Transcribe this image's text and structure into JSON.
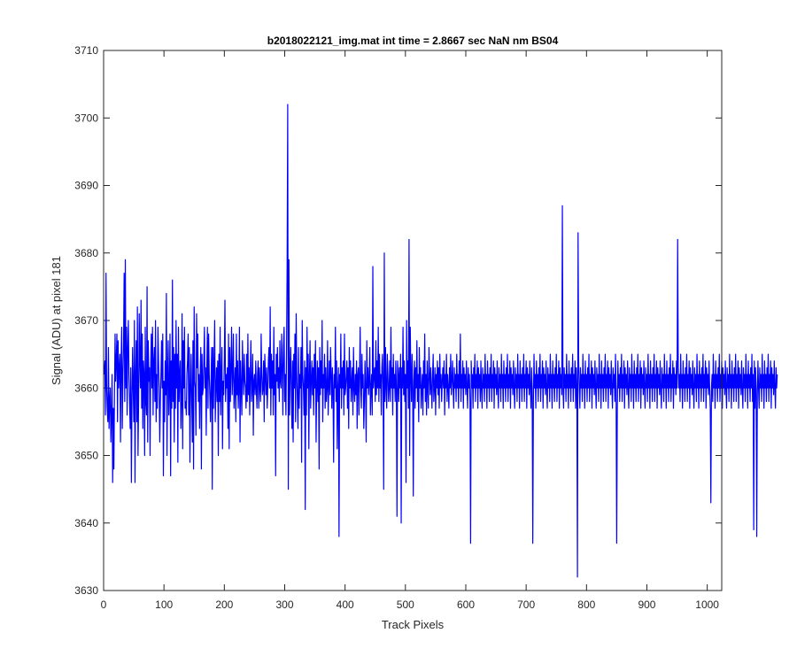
{
  "chart_data": {
    "type": "line",
    "title": "b2018022121_img.mat int time = 2.8667 sec  NaN nm BS04",
    "xlabel": "Track Pixels",
    "ylabel": "Signal (ADU) at pixel 181",
    "xlim": [
      0,
      1024
    ],
    "ylim": [
      3630,
      3710
    ],
    "xticks": [
      0,
      100,
      200,
      300,
      400,
      500,
      600,
      700,
      800,
      900,
      1000
    ],
    "yticks": [
      3630,
      3640,
      3650,
      3660,
      3670,
      3680,
      3690,
      3700,
      3710
    ],
    "grid": false,
    "series": [
      {
        "color": "#0000ff",
        "x_start": 1,
        "x_step": 1,
        "values": [
          3662,
          3664,
          3656,
          3677,
          3660,
          3657,
          3655,
          3666,
          3654,
          3658,
          3660,
          3652,
          3656,
          3662,
          3646,
          3657,
          3648,
          3659,
          3668,
          3661,
          3664,
          3668,
          3655,
          3667,
          3660,
          3663,
          3665,
          3652,
          3664,
          3669,
          3654,
          3662,
          3666,
          3677,
          3658,
          3679,
          3660,
          3669,
          3656,
          3666,
          3670,
          3662,
          3658,
          3654,
          3663,
          3646,
          3658,
          3666,
          3660,
          3655,
          3670,
          3646,
          3662,
          3667,
          3655,
          3672,
          3650,
          3658,
          3671,
          3664,
          3660,
          3673,
          3657,
          3668,
          3654,
          3664,
          3662,
          3650,
          3669,
          3658,
          3656,
          3675,
          3652,
          3667,
          3661,
          3663,
          3650,
          3663,
          3668,
          3660,
          3669,
          3656,
          3664,
          3666,
          3658,
          3670,
          3655,
          3662,
          3657,
          3669,
          3664,
          3660,
          3652,
          3658,
          3662,
          3667,
          3660,
          3668,
          3647,
          3661,
          3655,
          3664,
          3659,
          3674,
          3650,
          3662,
          3667,
          3656,
          3660,
          3668,
          3647,
          3664,
          3657,
          3676,
          3658,
          3666,
          3652,
          3665,
          3657,
          3670,
          3660,
          3665,
          3649,
          3669,
          3658,
          3662,
          3664,
          3654,
          3658,
          3671,
          3651,
          3667,
          3660,
          3669,
          3657,
          3658,
          3656,
          3662,
          3664,
          3668,
          3656,
          3666,
          3649,
          3660,
          3665,
          3658,
          3652,
          3667,
          3648,
          3672,
          3661,
          3660,
          3653,
          3671,
          3663,
          3668,
          3658,
          3662,
          3654,
          3662,
          3666,
          3648,
          3665,
          3659,
          3660,
          3664,
          3669,
          3660,
          3663,
          3653,
          3663,
          3669,
          3657,
          3668,
          3662,
          3659,
          3655,
          3661,
          3666,
          3645,
          3666,
          3657,
          3664,
          3670,
          3655,
          3660,
          3663,
          3658,
          3664,
          3650,
          3665,
          3658,
          3669,
          3656,
          3662,
          3666,
          3651,
          3661,
          3659,
          3664,
          3673,
          3658,
          3662,
          3660,
          3663,
          3654,
          3668,
          3651,
          3666,
          3658,
          3663,
          3669,
          3659,
          3662,
          3668,
          3657,
          3660,
          3663,
          3655,
          3668,
          3659,
          3664,
          3657,
          3660,
          3669,
          3652,
          3664,
          3660,
          3656,
          3667,
          3662,
          3659,
          3665,
          3661,
          3660,
          3657,
          3665,
          3658,
          3668,
          3659,
          3663,
          3656,
          3662,
          3667,
          3658,
          3660,
          3665,
          3653,
          3661,
          3662,
          3659,
          3664,
          3660,
          3657,
          3662,
          3664,
          3657,
          3663,
          3660,
          3658,
          3668,
          3662,
          3659,
          3660,
          3664,
          3655,
          3665,
          3662,
          3659,
          3663,
          3657,
          3660,
          3664,
          3666,
          3660,
          3672,
          3656,
          3665,
          3660,
          3664,
          3656,
          3669,
          3659,
          3662,
          3647,
          3665,
          3661,
          3666,
          3660,
          3663,
          3658,
          3667,
          3661,
          3660,
          3668,
          3663,
          3656,
          3666,
          3669,
          3658,
          3662,
          3656,
          3665,
          3678,
          3702,
          3645,
          3679,
          3656,
          3662,
          3666,
          3660,
          3654,
          3664,
          3652,
          3665,
          3660,
          3668,
          3655,
          3671,
          3662,
          3658,
          3654,
          3666,
          3657,
          3662,
          3660,
          3666,
          3649,
          3670,
          3662,
          3660,
          3656,
          3664,
          3642,
          3663,
          3656,
          3669,
          3660,
          3665,
          3651,
          3662,
          3667,
          3657,
          3661,
          3664,
          3659,
          3663,
          3656,
          3665,
          3660,
          3667,
          3652,
          3660,
          3664,
          3658,
          3663,
          3648,
          3666,
          3659,
          3664,
          3660,
          3670,
          3655,
          3662,
          3660,
          3665,
          3657,
          3663,
          3658,
          3660,
          3667,
          3656,
          3660,
          3664,
          3659,
          3666,
          3662,
          3657,
          3663,
          3660,
          3649,
          3662,
          3660,
          3669,
          3658,
          3664,
          3651,
          3660,
          3663,
          3638,
          3662,
          3660,
          3668,
          3657,
          3663,
          3660,
          3664,
          3656,
          3668,
          3659,
          3660,
          3662,
          3664,
          3657,
          3663,
          3654,
          3666,
          3660,
          3664,
          3658,
          3661,
          3663,
          3656,
          3666,
          3660,
          3658,
          3662,
          3659,
          3664,
          3654,
          3662,
          3663,
          3656,
          3662,
          3669,
          3660,
          3657,
          3665,
          3660,
          3662,
          3654,
          3658,
          3664,
          3660,
          3652,
          3667,
          3660,
          3663,
          3659,
          3661,
          3666,
          3656,
          3660,
          3662,
          3656,
          3678,
          3660,
          3662,
          3663,
          3658,
          3667,
          3659,
          3664,
          3660,
          3669,
          3658,
          3665,
          3660,
          3662,
          3656,
          3663,
          3665,
          3660,
          3645,
          3680,
          3658,
          3666,
          3660,
          3657,
          3665,
          3662,
          3658,
          3660,
          3664,
          3658,
          3669,
          3660,
          3663,
          3656,
          3665,
          3660,
          3662,
          3658,
          3664,
          3660,
          3641,
          3664,
          3662,
          3658,
          3663,
          3660,
          3665,
          3640,
          3663,
          3660,
          3669,
          3659,
          3664,
          3658,
          3662,
          3646,
          3670,
          3660,
          3664,
          3657,
          3682,
          3650,
          3669,
          3662,
          3658,
          3665,
          3660,
          3644,
          3661,
          3664,
          3657,
          3663,
          3660,
          3667,
          3658,
          3662,
          3655,
          3666,
          3660,
          3663,
          3657,
          3660,
          3662,
          3656,
          3664,
          3660,
          3668,
          3658,
          3662,
          3656,
          3664,
          3660,
          3657,
          3666,
          3662,
          3659,
          3663,
          3660,
          3657,
          3662,
          3665,
          3658,
          3660,
          3663,
          3656,
          3662,
          3660,
          3664,
          3659,
          3663,
          3657,
          3665,
          3660,
          3662,
          3658,
          3661,
          3663,
          3660,
          3664,
          3656,
          3662,
          3660,
          3665,
          3658,
          3662,
          3660,
          3657,
          3663,
          3660,
          3665,
          3659,
          3661,
          3664,
          3660,
          3657,
          3663,
          3660,
          3662,
          3658,
          3665,
          3660,
          3662,
          3657,
          3664,
          3660,
          3668,
          3658,
          3662,
          3660,
          3664,
          3657,
          3663,
          3660,
          3662,
          3659,
          3664,
          3660,
          3657,
          3663,
          3660,
          3662,
          3658,
          3637,
          3664,
          3660,
          3662,
          3657,
          3663,
          3660,
          3665,
          3658,
          3662,
          3660,
          3664,
          3657,
          3663,
          3660,
          3662,
          3658,
          3664,
          3660,
          3657,
          3663,
          3660,
          3662,
          3658,
          3665,
          3660,
          3662,
          3657,
          3664,
          3660,
          3662,
          3658,
          3663,
          3660,
          3665,
          3658,
          3662,
          3660,
          3664,
          3657,
          3663,
          3660,
          3662,
          3659,
          3664,
          3660,
          3657,
          3663,
          3660,
          3662,
          3658,
          3665,
          3660,
          3662,
          3657,
          3664,
          3660,
          3662,
          3658,
          3663,
          3660,
          3665,
          3658,
          3662,
          3660,
          3664,
          3657,
          3663,
          3660,
          3662,
          3659,
          3664,
          3660,
          3657,
          3663,
          3660,
          3662,
          3658,
          3665,
          3660,
          3662,
          3657,
          3664,
          3660,
          3662,
          3658,
          3663,
          3660,
          3665,
          3658,
          3662,
          3660,
          3664,
          3657,
          3663,
          3660,
          3662,
          3659,
          3664,
          3660,
          3657,
          3663,
          3660,
          3637,
          3658,
          3665,
          3660,
          3662,
          3657,
          3664,
          3660,
          3662,
          3658,
          3663,
          3660,
          3665,
          3658,
          3662,
          3660,
          3664,
          3657,
          3663,
          3660,
          3662,
          3659,
          3664,
          3660,
          3657,
          3663,
          3660,
          3662,
          3658,
          3665,
          3660,
          3662,
          3657,
          3664,
          3660,
          3662,
          3658,
          3663,
          3660,
          3665,
          3658,
          3662,
          3660,
          3664,
          3657,
          3663,
          3660,
          3662,
          3659,
          3687,
          3660,
          3657,
          3663,
          3660,
          3662,
          3658,
          3665,
          3660,
          3662,
          3657,
          3664,
          3660,
          3662,
          3658,
          3663,
          3660,
          3665,
          3658,
          3662,
          3660,
          3664,
          3657,
          3663,
          3660,
          3632,
          3683,
          3664,
          3660,
          3657,
          3663,
          3660,
          3662,
          3658,
          3665,
          3660,
          3662,
          3657,
          3664,
          3660,
          3662,
          3658,
          3663,
          3660,
          3665,
          3658,
          3662,
          3660,
          3664,
          3657,
          3663,
          3660,
          3662,
          3659,
          3664,
          3660,
          3657,
          3663,
          3660,
          3662,
          3658,
          3665,
          3660,
          3662,
          3657,
          3664,
          3660,
          3662,
          3658,
          3663,
          3660,
          3665,
          3658,
          3662,
          3660,
          3664,
          3657,
          3663,
          3660,
          3662,
          3659,
          3664,
          3660,
          3657,
          3663,
          3660,
          3662,
          3658,
          3665,
          3660,
          3637,
          3657,
          3664,
          3660,
          3662,
          3658,
          3663,
          3660,
          3665,
          3658,
          3662,
          3660,
          3664,
          3657,
          3663,
          3660,
          3662,
          3659,
          3664,
          3660,
          3657,
          3663,
          3660,
          3662,
          3658,
          3665,
          3660,
          3662,
          3657,
          3664,
          3660,
          3662,
          3658,
          3663,
          3660,
          3665,
          3658,
          3662,
          3660,
          3664,
          3657,
          3663,
          3660,
          3662,
          3659,
          3664,
          3660,
          3657,
          3663,
          3660,
          3662,
          3658,
          3665,
          3660,
          3662,
          3657,
          3664,
          3660,
          3662,
          3658,
          3663,
          3660,
          3665,
          3658,
          3662,
          3660,
          3664,
          3657,
          3663,
          3660,
          3662,
          3659,
          3664,
          3660,
          3657,
          3663,
          3660,
          3662,
          3658,
          3665,
          3660,
          3662,
          3657,
          3664,
          3660,
          3662,
          3658,
          3663,
          3660,
          3665,
          3658,
          3662,
          3660,
          3664,
          3657,
          3663,
          3660,
          3662,
          3659,
          3664,
          3660,
          3682,
          3663,
          3660,
          3662,
          3658,
          3665,
          3660,
          3662,
          3657,
          3664,
          3660,
          3662,
          3658,
          3663,
          3660,
          3665,
          3658,
          3662,
          3660,
          3664,
          3657,
          3663,
          3660,
          3662,
          3659,
          3664,
          3660,
          3657,
          3663,
          3660,
          3662,
          3658,
          3665,
          3660,
          3662,
          3657,
          3664,
          3660,
          3662,
          3658,
          3663,
          3660,
          3665,
          3658,
          3662,
          3660,
          3664,
          3657,
          3663,
          3660,
          3662,
          3659,
          3664,
          3660,
          3657,
          3643,
          3660,
          3662,
          3658,
          3665,
          3660,
          3662,
          3657,
          3664,
          3660,
          3662,
          3658,
          3663,
          3660,
          3665,
          3658,
          3662,
          3660,
          3664,
          3657,
          3663,
          3660,
          3662,
          3659,
          3664,
          3660,
          3657,
          3663,
          3660,
          3662,
          3658,
          3665,
          3660,
          3662,
          3657,
          3664,
          3660,
          3662,
          3658,
          3663,
          3660,
          3665,
          3658,
          3662,
          3660,
          3664,
          3657,
          3663,
          3660,
          3662,
          3659,
          3664,
          3660,
          3657,
          3663,
          3660,
          3662,
          3658,
          3665,
          3660,
          3662,
          3657,
          3664,
          3660,
          3662,
          3658,
          3663,
          3660,
          3665,
          3658,
          3662,
          3639,
          3664,
          3657,
          3663,
          3660,
          3638,
          3659,
          3664,
          3660,
          3657,
          3663,
          3660,
          3662,
          3658,
          3665,
          3660,
          3662,
          3657,
          3664,
          3660,
          3662,
          3658,
          3663,
          3660,
          3665,
          3658,
          3662,
          3660,
          3664,
          3657,
          3663,
          3660,
          3662,
          3659,
          3664,
          3660,
          3657,
          3663,
          3660,
          3662
        ]
      }
    ]
  }
}
